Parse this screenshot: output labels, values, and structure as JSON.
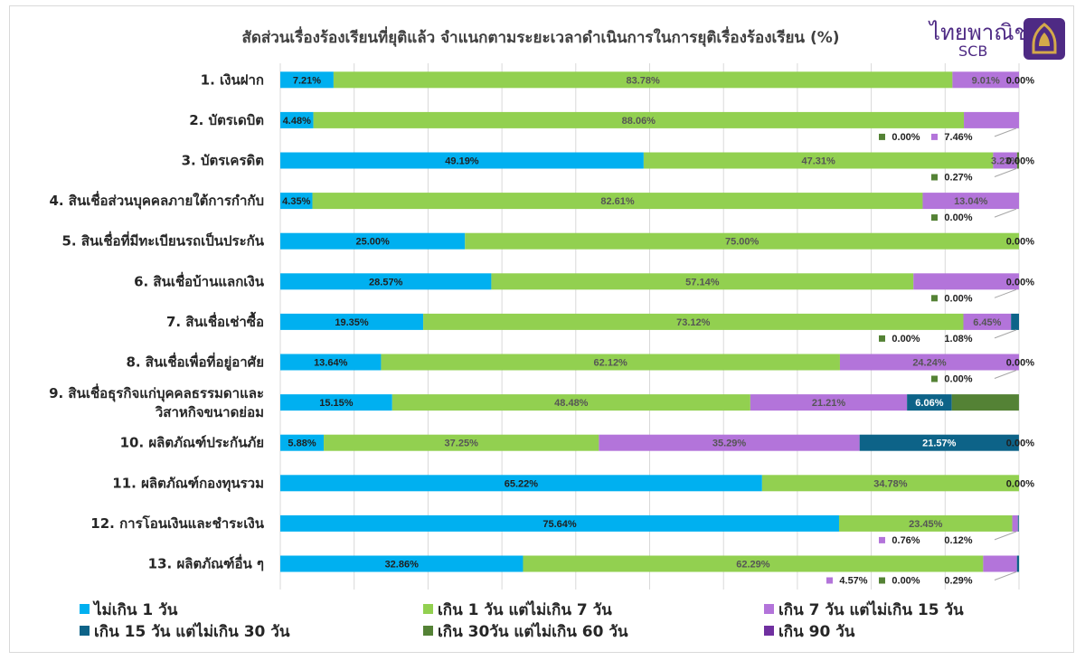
{
  "chart_data": {
    "type": "bar",
    "orientation": "horizontal",
    "stacked": "100%",
    "title": "สัดส่วนเรื่องร้องเรียนที่ยุติแล้ว จำแนกตามระยะเวลาดำเนินการในการยุติเรื่องร้องเรียน (%)",
    "categories": [
      "1. เงินฝาก",
      "2. บัตรเดบิต",
      "3. บัตรเครดิต",
      "4. สินเชื่อส่วนบุคคลภายใต้การกำกับ",
      "5. สินเชื่อที่มีทะเบียนรถเป็นประกัน",
      "6. สินเชื่อบ้านแลกเงิน",
      "7. สินเชื่อเช่าซื้อ",
      "8. สินเชื่อเพื่อที่อยู่อาศัย",
      [
        "9. สินเชื่อธุรกิจแก่บุคคลธรรมดาและ",
        "วิสาหกิจขนาดย่อม"
      ],
      "10. ผลิตภัณฑ์ประกันภัย",
      "11. ผลิตภัณฑ์กองทุนรวม",
      "12. การโอนเงินและชำระเงิน",
      "13. ผลิตภัณฑ์อื่น ๆ"
    ],
    "series": [
      {
        "name": "ไม่เกิน 1 วัน",
        "color": "#00b0f0",
        "values": [
          7.21,
          4.48,
          49.19,
          4.35,
          25.0,
          28.57,
          19.35,
          13.64,
          15.15,
          5.88,
          65.22,
          75.64,
          32.86
        ],
        "labels": [
          "7.21%",
          "4.48%",
          "49.19%",
          "4.35%",
          "25.00%",
          "28.57%",
          "19.35%",
          "13.64%",
          "15.15%",
          "5.88%",
          "65.22%",
          "75.64%",
          "32.86%"
        ]
      },
      {
        "name": "เกิน 1 วัน แต่ไม่เกิน 7 วัน",
        "color": "#92d050",
        "values": [
          83.78,
          88.06,
          47.31,
          82.61,
          75.0,
          57.14,
          73.12,
          62.12,
          48.48,
          37.25,
          34.78,
          23.45,
          62.29
        ],
        "labels": [
          "83.78%",
          "88.06%",
          "47.31%",
          "82.61%",
          "75.00%",
          "57.14%",
          "73.12%",
          "62.12%",
          "48.48%",
          "37.25%",
          "34.78%",
          "23.45%",
          "62.29%"
        ]
      },
      {
        "name": "เกิน 7 วัน แต่ไม่เกิน 15 วัน",
        "color": "#b374da",
        "values": [
          9.01,
          7.46,
          3.23,
          13.04,
          0,
          14.29,
          6.45,
          24.24,
          21.21,
          35.29,
          0,
          0.76,
          4.57
        ],
        "labels": [
          "9.01%",
          "",
          "3.23%",
          "13.04%",
          "",
          "",
          "6.45%",
          "24.24%",
          "21.21%",
          "35.29%",
          "",
          "",
          ""
        ]
      },
      {
        "name": "เกิน 15 วัน แต่ไม่เกิน 30 วัน",
        "color": "#0d6388",
        "values": [
          0,
          0,
          0,
          0,
          0,
          0,
          1.08,
          0,
          6.06,
          21.57,
          0,
          0.12,
          0.29
        ],
        "labels": [
          "",
          "",
          "",
          "",
          "",
          "",
          "",
          "",
          "6.06%",
          "21.57%",
          "",
          "",
          ""
        ]
      },
      {
        "name": "เกิน 30วัน แต่ไม่เกิน 60 วัน",
        "color": "#548235",
        "values": [
          0,
          0,
          0.27,
          0,
          0,
          0,
          0,
          0,
          9.09,
          0,
          0,
          0,
          0
        ],
        "labels": [
          "",
          "",
          "",
          "",
          "",
          "",
          "",
          "",
          "",
          "",
          "",
          "",
          ""
        ]
      },
      {
        "name": "เกิน 90 วัน",
        "color": "#7030a0",
        "values": [
          0,
          0,
          0,
          0,
          0,
          0,
          0,
          0,
          0,
          0,
          0,
          0,
          0
        ],
        "labels": [
          "",
          "",
          "",
          "",
          "",
          "",
          "",
          "",
          "",
          "",
          "",
          "",
          ""
        ]
      }
    ],
    "end_labels": [
      "0.00%",
      "",
      "0.00%",
      "",
      "0.00%",
      "0.00%",
      "",
      "0.00%",
      "",
      "0.00%",
      "0.00%",
      "",
      ""
    ],
    "callouts": [
      {
        "row": 1,
        "texts": [
          "0.00%",
          "7.46%"
        ]
      },
      {
        "row": 2,
        "texts": [
          "0.27%"
        ]
      },
      {
        "row": 3,
        "texts": [
          "0.00%"
        ]
      },
      {
        "row": 5,
        "texts": [
          "0.00%"
        ]
      },
      {
        "row": 6,
        "texts": [
          "0.00%",
          "1.08%"
        ]
      },
      {
        "row": 7,
        "texts": [
          "0.00%"
        ]
      },
      {
        "row": 11,
        "texts": [
          "0.76%",
          "0.12%"
        ]
      },
      {
        "row": 12,
        "texts": [
          "4.57%",
          "0.00%",
          "0.29%"
        ]
      }
    ],
    "xlim": [
      0,
      100
    ],
    "legend_position": "bottom"
  },
  "logo": {
    "thai_text": "ไทยพาณิชย์",
    "en_text": "SCB",
    "color": "#4e2a84",
    "emblem_color": "#4e2a84",
    "emblem_gold": "#d4a94a"
  }
}
